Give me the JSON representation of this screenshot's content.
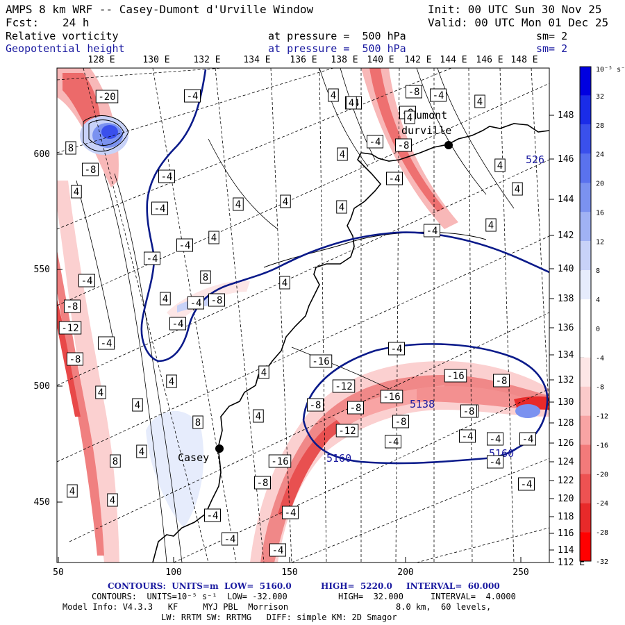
{
  "header": {
    "title": "AMPS 8 km WRF -- Casey-Dumont d'Urville Window",
    "init": "Init: 00 UTC Sun 30 Nov 25",
    "fcst_label": "Fcst:",
    "fcst_value": "24 h",
    "valid": "Valid: 00 UTC Mon 01 Dec 25",
    "field1": {
      "name": "Relative vorticity",
      "level": "at pressure =  500 hPa",
      "smooth": "sm= 2"
    },
    "field2": {
      "name": "Geopotential height",
      "level": "at pressure =  500 hPa",
      "smooth": "sm= 2"
    }
  },
  "colors": {
    "blue_contour": "#0a1a8a",
    "coast": "#000000"
  },
  "top_lon_labels": [
    "128 E",
    "130 E",
    "132 E",
    "134 E",
    "136 E",
    "138 E",
    "140 E",
    "142 E",
    "144 E",
    "146 E",
    "148 E"
  ],
  "right_lat_labels": [
    "148 E",
    "146 E",
    "144 E",
    "142 E",
    "140 E",
    "138 E",
    "136 E",
    "134 E",
    "132 E",
    "130 E",
    "128 E",
    "126 E",
    "124 E",
    "122 E",
    "120 E",
    "118 E",
    "116 E",
    "114 E",
    "112 E"
  ],
  "left_y_labels": [
    "600",
    "550",
    "500",
    "450"
  ],
  "bottom_x_labels": [
    "50",
    "100",
    "150",
    "200",
    "250"
  ],
  "colorbar": {
    "unit": "10⁻⁵ s⁻¹",
    "labels": [
      "32",
      "28",
      "24",
      "20",
      "16",
      "12",
      "8",
      "4",
      "0",
      "-4",
      "-8",
      "-12",
      "-16",
      "-20",
      "-24",
      "-28",
      "-32"
    ],
    "colors": [
      "#0000e0",
      "#1a2ce8",
      "#3a50ec",
      "#5a72ee",
      "#7b92f0",
      "#a0b2f4",
      "#c8d2f8",
      "#e6ecfc",
      "#ffffff",
      "#ffffff",
      "#fde6e6",
      "#fbcaca",
      "#f8a4a4",
      "#f37a7a",
      "#ee5252",
      "#e82a2a",
      "#ff0000"
    ]
  },
  "places": [
    {
      "name": "Casey"
    },
    {
      "name": "Dumont"
    },
    {
      "name": "durville"
    }
  ],
  "height_labels": [
    "5138",
    "5160",
    "5160",
    "526"
  ],
  "vort_labels": [
    "-20",
    "-4",
    "-4",
    "8",
    "-8",
    "-4",
    "4",
    "4",
    "4",
    "4",
    "-4",
    "-4",
    "4",
    "8",
    "-4",
    "4",
    "-8",
    "-4",
    "4",
    "-4",
    "-8",
    "-12",
    "-8",
    "-4",
    "4",
    "4",
    "4",
    "4",
    "4",
    "8",
    "8",
    "4",
    "4",
    "-4",
    "4",
    "-4",
    "-8",
    "-4",
    "-8",
    "-8",
    "-4",
    "-4",
    "-16",
    "-8",
    "-12",
    "-4",
    "-8",
    "-16",
    "-12",
    "-16",
    "-8",
    "-8",
    "-4",
    "-16",
    "-8",
    "-4",
    "-4",
    "-4",
    "-4",
    "-4",
    "4",
    "4",
    "4",
    "4",
    "4",
    "4",
    "4",
    "4",
    "-4",
    "-8",
    "-8",
    "-4",
    "-4",
    "-4"
  ],
  "footer": {
    "line1a": "CONTOURS:  UNITS=m  LOW=  5160.0",
    "line1b": "HIGH=  5220.0",
    "line1c": "INTERVAL=  60.000",
    "line2a": "CONTOURS:  UNITS=10⁻⁵ s⁻¹  LOW= -32.000",
    "line2b": "HIGH=  32.000",
    "line2c": "INTERVAL=  4.0000",
    "line3a": "Model Info: V4.3.3   KF     MYJ PBL  Morrison",
    "line3b": "8.0 km,  60 levels,",
    "line4": "LW: RRTM SW: RRTMG   DIFF: simple KM: 2D Smagor"
  }
}
